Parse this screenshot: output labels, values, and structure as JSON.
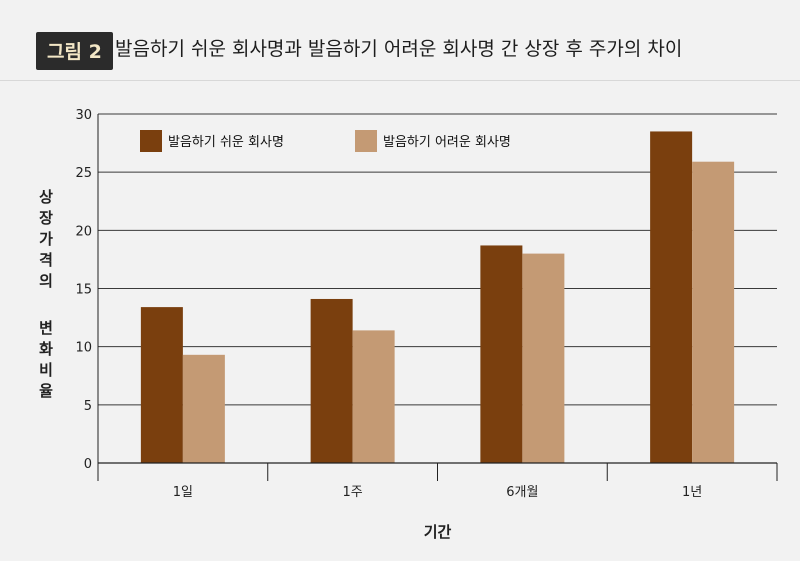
{
  "figure_label": "그림 2",
  "title": "발음하기 쉬운 회사명과 발음하기 어려운 회사명 간 상장 후 주가의 차이",
  "chart_data": {
    "type": "bar",
    "categories": [
      "1일",
      "1주",
      "6개월",
      "1년"
    ],
    "series": [
      {
        "name": "발음하기 쉬운 회사명",
        "color": "#7a3f0e",
        "values": [
          13.4,
          14.1,
          18.7,
          28.5
        ]
      },
      {
        "name": "발음하기 어려운 회사명",
        "color": "#c49a74",
        "values": [
          9.3,
          11.4,
          18.0,
          25.9
        ]
      }
    ],
    "xlabel": "기간",
    "ylabel_parts": [
      "상장가격의",
      "변화비율"
    ],
    "ylim": [
      0,
      30
    ],
    "yticks": [
      0,
      5,
      10,
      15,
      20,
      25,
      30
    ],
    "grid": true,
    "legend_position": "top-left"
  }
}
